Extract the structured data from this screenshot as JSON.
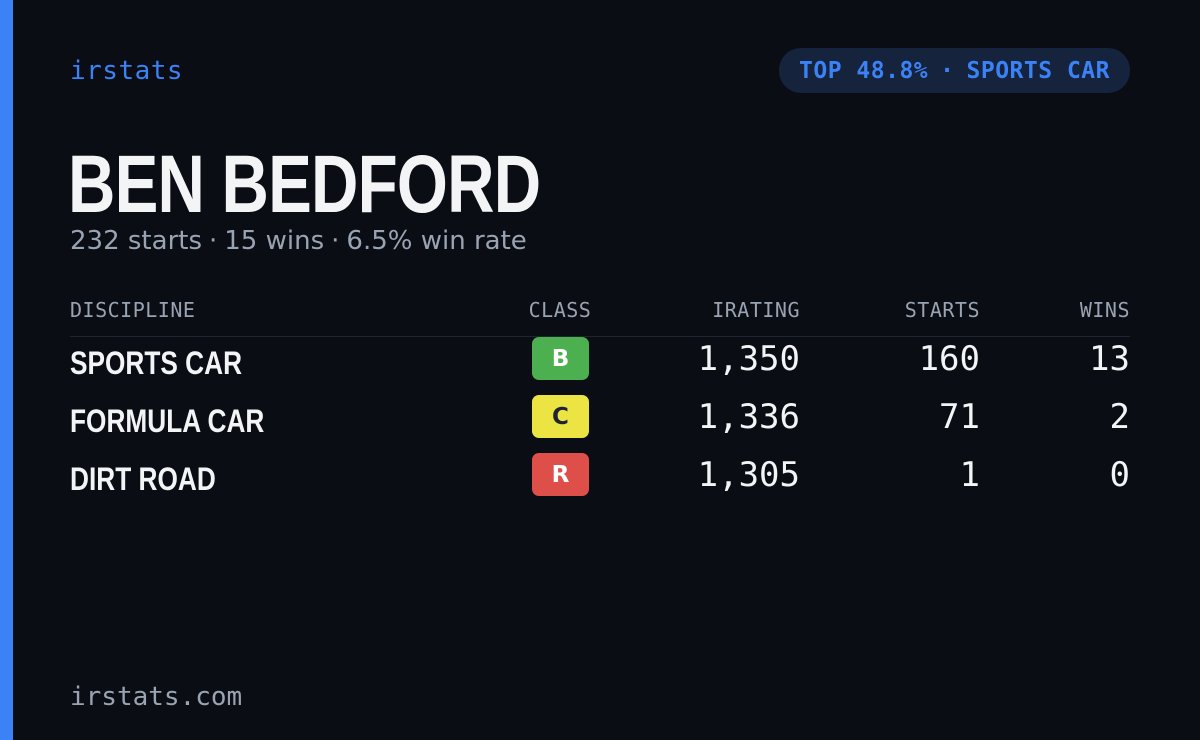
{
  "brand": "irstats",
  "rank": {
    "label": "TOP 48.8%",
    "separator": "·",
    "discipline": "SPORTS CAR"
  },
  "driver": {
    "name": "BEN BEDFORD",
    "starts": "232 starts",
    "wins": "15 wins",
    "win_rate": "6.5% win rate",
    "separator": "·"
  },
  "table": {
    "headers": {
      "discipline": "DISCIPLINE",
      "class": "CLASS",
      "irating": "IRATING",
      "starts": "STARTS",
      "wins": "WINS"
    },
    "rows": [
      {
        "discipline": "SPORTS CAR",
        "class": "B",
        "class_color": "#4caf50",
        "class_text_color": "#ffffff",
        "irating": "1,350",
        "starts": "160",
        "wins": "13"
      },
      {
        "discipline": "FORMULA CAR",
        "class": "C",
        "class_color": "#ece443",
        "class_text_color": "#1f2430",
        "irating": "1,336",
        "starts": "71",
        "wins": "2"
      },
      {
        "discipline": "DIRT ROAD",
        "class": "R",
        "class_color": "#de4f4a",
        "class_text_color": "#ffffff",
        "irating": "1,305",
        "starts": "1",
        "wins": "0"
      }
    ]
  },
  "footer": "irstats.com",
  "colors": {
    "accent": "#3b82f6",
    "background": "#0a0d14",
    "muted_text": "#9aa3b2",
    "primary_text": "#f3f4f6"
  }
}
